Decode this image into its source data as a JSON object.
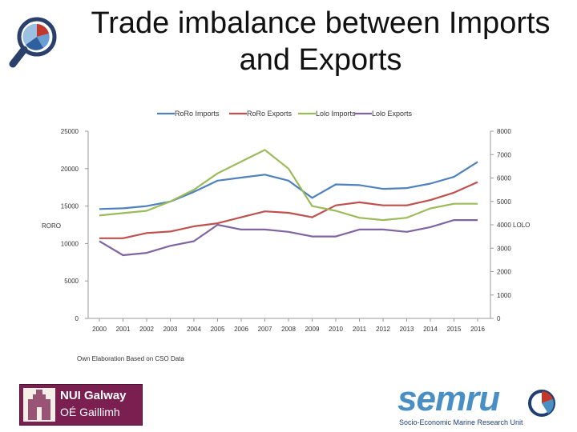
{
  "title": "Trade imbalance between Imports and Exports",
  "source_note": "Own Elaboration Based on CSO Data",
  "logos": {
    "nui_line1": "NUI Galway",
    "nui_line2": "OÉ Gaillimh",
    "semru_word": "semru",
    "semru_sub": "Socio-Economic Marine Research Unit"
  },
  "chart_data": {
    "type": "line",
    "title": "",
    "x": [
      "2000",
      "2001",
      "2002",
      "2003",
      "2004",
      "2005",
      "2006",
      "2007",
      "2008",
      "2009",
      "2010",
      "2011",
      "2012",
      "2013",
      "2014",
      "2015",
      "2016"
    ],
    "left_axis": {
      "label": "RORO",
      "range": [
        0,
        25000
      ],
      "ticks": [
        "0",
        "5000",
        "10000",
        "15000",
        "20000",
        "25000"
      ]
    },
    "right_axis": {
      "label": "LOLO",
      "range": [
        0,
        8000
      ],
      "ticks": [
        "0",
        "1000",
        "2000",
        "3000",
        "4000 LOLO",
        "5000",
        "6000",
        "7000",
        "8000"
      ]
    },
    "series": [
      {
        "name": "RoRo Imports",
        "axis": "left",
        "color": "#4f81bd",
        "values": [
          14600,
          14700,
          15000,
          15600,
          16900,
          18400,
          18800,
          19200,
          18400,
          16100,
          17900,
          17800,
          17300,
          17400,
          18000,
          18900,
          20900
        ]
      },
      {
        "name": "RoRo Exports",
        "axis": "left",
        "color": "#c0504d",
        "values": [
          10700,
          10700,
          11400,
          11600,
          12300,
          12700,
          13500,
          14300,
          14100,
          13500,
          15100,
          15500,
          15100,
          15100,
          15800,
          16800,
          18200
        ]
      },
      {
        "name": "Lolo Imports",
        "axis": "right",
        "color": "#9bbb59",
        "values": [
          4400,
          4500,
          4600,
          5000,
          5500,
          6200,
          6700,
          7200,
          6400,
          4800,
          4600,
          4300,
          4200,
          4300,
          4700,
          4900,
          4900
        ]
      },
      {
        "name": "Lolo Exports",
        "axis": "right",
        "color": "#8064a2",
        "values": [
          3300,
          2700,
          2800,
          3100,
          3300,
          4000,
          3800,
          3800,
          3700,
          3500,
          3500,
          3800,
          3800,
          3700,
          3900,
          4200,
          4200
        ]
      }
    ],
    "legend": "top-center",
    "grid": false
  }
}
